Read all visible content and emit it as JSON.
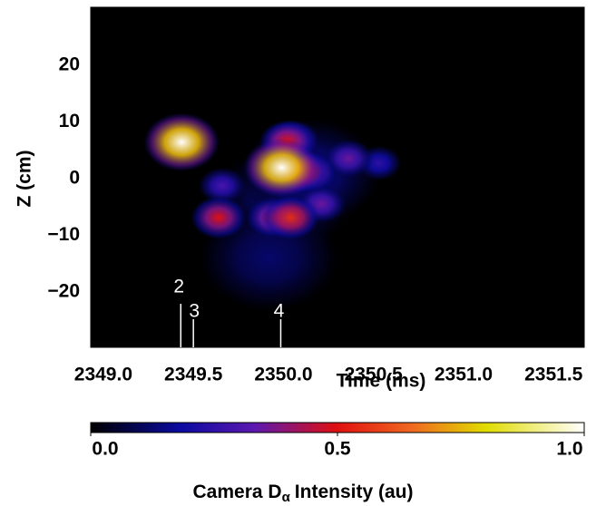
{
  "chart_data": {
    "type": "heatmap",
    "x_label": "Time (ms)",
    "y_label": "Z (cm)",
    "xlim": [
      2348.93,
      2351.67
    ],
    "ylim": [
      -29.8,
      30.2
    ],
    "xticks": [
      {
        "value": 2349,
        "label": "2349.0"
      },
      {
        "value": 2349.5,
        "label": "2349.5"
      },
      {
        "value": 2350,
        "label": "2350.0"
      },
      {
        "value": 2350.5,
        "label": "2350.5"
      },
      {
        "value": 2351,
        "label": "2351.0"
      },
      {
        "value": 2351.5,
        "label": "2351.5"
      }
    ],
    "yticks": [
      {
        "value": -20,
        "label": "−20"
      },
      {
        "value": -10,
        "label": "−10"
      },
      0,
      10,
      20
    ],
    "x": [
      2349.99,
      2349.92,
      2350.15,
      2350.05,
      2350.53,
      2349.66,
      2350.36,
      2350.21,
      2349.94,
      2350.15,
      2350.09,
      2350.04,
      2350.02,
      2349.64,
      2349.99,
      2349.435
    ],
    "y": [
      -4,
      -14,
      1,
      6.7,
      2.7,
      -1.3,
      3.5,
      -4.5,
      -6.9,
      1.1,
      1.3,
      -6.9,
      6.5,
      -6.9,
      1.9,
      6.4
    ],
    "values": [
      0.12,
      0.12,
      0.15,
      0.45,
      0.25,
      0.3,
      0.35,
      0.35,
      0.45,
      0.45,
      0.55,
      0.55,
      0.5,
      0.5,
      1.0,
      1.0
    ],
    "markers": [
      {
        "label": "2",
        "x": 2349.43
      },
      {
        "label": "3",
        "x": 2349.5
      },
      {
        "label": "4",
        "x": 2349.985
      }
    ],
    "colorbar": {
      "label": {
        "prefix": "Camera D",
        "subscript": "α",
        "suffix": "Intensity (au)"
      },
      "lim": [
        0,
        1
      ],
      "ticks": [
        {
          "value": 0,
          "label": "0.0"
        },
        0.5,
        {
          "value": 1,
          "label": "1.0"
        }
      ]
    }
  }
}
